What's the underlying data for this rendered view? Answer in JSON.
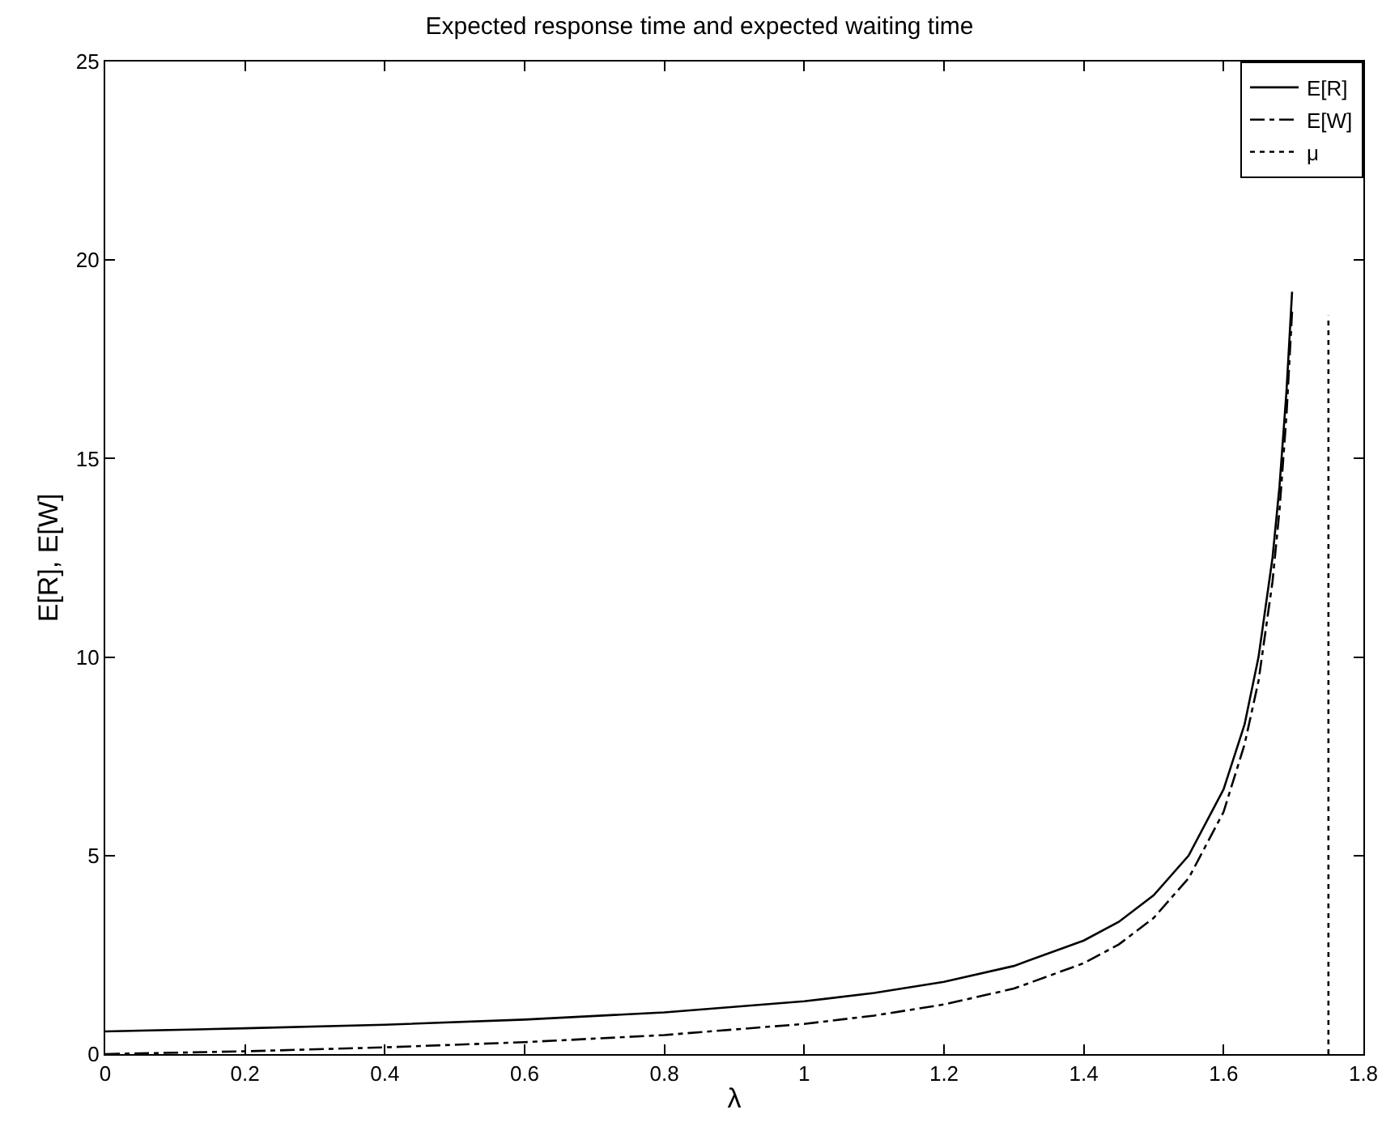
{
  "chart_data": {
    "type": "line",
    "title": "Expected response time and expected waiting time",
    "xlabel": "λ",
    "ylabel": "E[R], E[W]",
    "series": [
      {
        "name": "E[R]",
        "color": "#000000",
        "line_style": "solid",
        "x": [
          0,
          0.2,
          0.4,
          0.6,
          0.8,
          1.0,
          1.1,
          1.2,
          1.3,
          1.4,
          1.45,
          1.5,
          1.55,
          1.6,
          1.63,
          1.65,
          1.67,
          1.68,
          1.69,
          1.698
        ],
        "values": [
          0.57,
          0.65,
          0.74,
          0.87,
          1.05,
          1.33,
          1.54,
          1.82,
          2.22,
          2.86,
          3.33,
          4.0,
          5.0,
          6.67,
          8.3,
          10.0,
          12.5,
          14.3,
          16.7,
          19.2
        ]
      },
      {
        "name": "E[W]",
        "color": "#000000",
        "line_style": "dashdot",
        "x": [
          0,
          0.2,
          0.4,
          0.6,
          0.8,
          1.0,
          1.1,
          1.2,
          1.3,
          1.4,
          1.45,
          1.5,
          1.55,
          1.6,
          1.63,
          1.65,
          1.67,
          1.68,
          1.69,
          1.698
        ],
        "values": [
          0,
          0.07,
          0.17,
          0.3,
          0.48,
          0.76,
          0.97,
          1.25,
          1.65,
          2.29,
          2.76,
          3.43,
          4.43,
          6.1,
          7.8,
          9.4,
          11.9,
          13.7,
          16.1,
          18.7
        ]
      },
      {
        "name": "μ",
        "color": "#000000",
        "line_style": "dotted",
        "x": [
          1.75,
          1.75
        ],
        "values": [
          0,
          18.6
        ]
      }
    ],
    "xlim": [
      0,
      1.8
    ],
    "xticks": [
      0,
      0.2,
      0.4,
      0.6,
      0.8,
      1,
      1.2,
      1.4,
      1.6,
      1.8
    ],
    "ylim": [
      0,
      25
    ],
    "yticks": [
      0,
      5,
      10,
      15,
      20,
      25
    ],
    "legend": "top right"
  }
}
